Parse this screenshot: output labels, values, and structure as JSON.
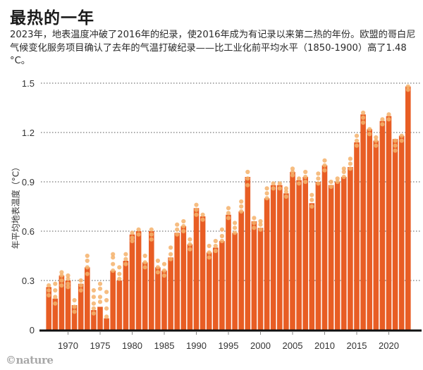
{
  "title": "最热的一年",
  "subtitle": "2023年，地表温度冲破了2016年的纪录，使2016年成为有记录以来第二热的年份。欧盟的哥白尼气候变化服务项目确认了去年的气温打破纪录——比工业化前平均水平（1850-1900）高了1.48 °C。",
  "source_logo": "©nature",
  "colors": {
    "bar": "#e85d24",
    "dot": "#f5b26b",
    "axis": "#111111",
    "grid": "#555555",
    "text": "#333333"
  },
  "chart_data": {
    "type": "bar",
    "title": "最热的一年",
    "xlabel": "",
    "ylabel": "年平均地表温度（°C）",
    "ylim": [
      0,
      1.5
    ],
    "yticks": [
      0,
      0.3,
      0.6,
      0.9,
      1.2,
      1.5
    ],
    "ytick_labels": [
      "0",
      "0.3",
      "0.6",
      "0.9",
      "1.2",
      "1.5"
    ],
    "xticks": [
      1970,
      1975,
      1980,
      1985,
      1990,
      1995,
      2000,
      2005,
      2010,
      2015,
      2020
    ],
    "xtick_labels": [
      "1970",
      "1975",
      "1980",
      "1985",
      "1990",
      "1995",
      "2000",
      "2005",
      "2010",
      "2015",
      "2020"
    ],
    "grid": "horizontal-dotted",
    "categories": [
      1967,
      1968,
      1969,
      1970,
      1971,
      1972,
      1973,
      1974,
      1975,
      1976,
      1977,
      1978,
      1979,
      1980,
      1981,
      1982,
      1983,
      1984,
      1985,
      1986,
      1987,
      1988,
      1989,
      1990,
      1991,
      1992,
      1993,
      1994,
      1995,
      1996,
      1997,
      1998,
      1999,
      2000,
      2001,
      2002,
      2003,
      2004,
      2005,
      2006,
      2007,
      2008,
      2009,
      2010,
      2011,
      2012,
      2013,
      2014,
      2015,
      2016,
      2017,
      2018,
      2019,
      2020,
      2021,
      2022,
      2023
    ],
    "values": [
      0.26,
      0.19,
      0.33,
      0.3,
      0.15,
      0.28,
      0.38,
      0.12,
      0.14,
      0.07,
      0.36,
      0.3,
      0.42,
      0.58,
      0.6,
      0.41,
      0.6,
      0.38,
      0.36,
      0.44,
      0.59,
      0.63,
      0.52,
      0.74,
      0.69,
      0.47,
      0.5,
      0.54,
      0.7,
      0.59,
      0.72,
      0.93,
      0.66,
      0.62,
      0.8,
      0.88,
      0.88,
      0.83,
      0.96,
      0.91,
      0.93,
      0.77,
      0.9,
      1.0,
      0.88,
      0.9,
      0.93,
      0.99,
      1.14,
      1.31,
      1.22,
      1.15,
      1.27,
      1.3,
      1.16,
      1.18,
      1.48
    ],
    "dataset_spread": [
      [
        0.21,
        0.24,
        0.27
      ],
      [
        0.16,
        0.2,
        0.24,
        0.28
      ],
      [
        0.27,
        0.3,
        0.33,
        0.35
      ],
      [
        0.26,
        0.28,
        0.31,
        0.33
      ],
      [
        0.11,
        0.14,
        0.18
      ],
      [
        0.24,
        0.27,
        0.3
      ],
      [
        0.34,
        0.38,
        0.42,
        0.45
      ],
      [
        0.1,
        0.13,
        0.16,
        0.2,
        0.24
      ],
      [
        0.17,
        0.2,
        0.25,
        0.28
      ],
      [
        0.08,
        0.13,
        0.18,
        0.23
      ],
      [
        0.36,
        0.4,
        0.44,
        0.46
      ],
      [
        0.31,
        0.34,
        0.38
      ],
      [
        0.4,
        0.43,
        0.46
      ],
      [
        0.54,
        0.56,
        0.59
      ],
      [
        0.58,
        0.61
      ],
      [
        0.38,
        0.41,
        0.45
      ],
      [
        0.55,
        0.58,
        0.61
      ],
      [
        0.35,
        0.38,
        0.42
      ],
      [
        0.33,
        0.36,
        0.4
      ],
      [
        0.43,
        0.46,
        0.5
      ],
      [
        0.58,
        0.61,
        0.64
      ],
      [
        0.6,
        0.63,
        0.66
      ],
      [
        0.49,
        0.52,
        0.55
      ],
      [
        0.7,
        0.73,
        0.76
      ],
      [
        0.67,
        0.7
      ],
      [
        0.44,
        0.47,
        0.51
      ],
      [
        0.48,
        0.51,
        0.54
      ],
      [
        0.54,
        0.57,
        0.61
      ],
      [
        0.68,
        0.71,
        0.74
      ],
      [
        0.59,
        0.62,
        0.65
      ],
      [
        0.72,
        0.75,
        0.78
      ],
      [
        0.88,
        0.92,
        0.96
      ],
      [
        0.62,
        0.65,
        0.68
      ],
      [
        0.61,
        0.64,
        0.66
      ],
      [
        0.8,
        0.83,
        0.86
      ],
      [
        0.86,
        0.89
      ],
      [
        0.86,
        0.89
      ],
      [
        0.81,
        0.84,
        0.86
      ],
      [
        0.94,
        0.96,
        0.98
      ],
      [
        0.89,
        0.92
      ],
      [
        0.9,
        0.93,
        0.96
      ],
      [
        0.75,
        0.79,
        0.82
      ],
      [
        0.89,
        0.92,
        0.95
      ],
      [
        0.97,
        1.0,
        1.03
      ],
      [
        0.87,
        0.9
      ],
      [
        0.9,
        0.92
      ],
      [
        0.93,
        0.96,
        0.98
      ],
      [
        0.98,
        1.01,
        1.04
      ],
      [
        1.12,
        1.15,
        1.18
      ],
      [
        1.26,
        1.29,
        1.32
      ],
      [
        1.19,
        1.22
      ],
      [
        1.12,
        1.15,
        1.17
      ],
      [
        1.25,
        1.28
      ],
      [
        1.28,
        1.31
      ],
      [
        1.09,
        1.12,
        1.15
      ],
      [
        1.15,
        1.18
      ],
      [
        1.46,
        1.48
      ]
    ]
  }
}
